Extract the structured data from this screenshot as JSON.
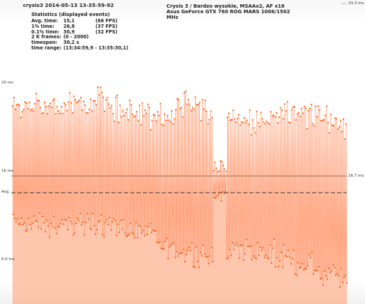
{
  "header": {
    "run_name": "crysis3 2014-05-13 13-35-59-92",
    "game": "Crysis 3 / Bardzo wysokie, MSAAx2, AF x16",
    "gpu": "Asus GeForce GTX 760 ROG MARS 1006/1502",
    "gpu_unit": "MHz"
  },
  "stats": {
    "title": "Statistics (displayed events)",
    "rows": [
      {
        "label": "Avg. time:",
        "value": "15,1",
        "extra": "(66 FPS)"
      },
      {
        "label": "1% time:",
        "value": "26,8",
        "extra": "(37 FPS)"
      },
      {
        "label": "0.1% time:",
        "value": "30,9",
        "extra": "(32 FPS)"
      },
      {
        "label": "2 K frames:",
        "value": "(0 - 2000)",
        "extra": ""
      },
      {
        "label": "timespan:",
        "value": "30,2 s",
        "extra": ""
      },
      {
        "label": "time range:",
        "value": "(13:34:59,9 - 13:35:30,1)",
        "extra": ""
      }
    ]
  },
  "axes": {
    "left_labels": [
      "20 ms",
      "16 ms",
      "Avg.",
      "0.0 ms"
    ],
    "top_right": "33.3 ms",
    "ref_right": "16.7 ms"
  },
  "chart_data": {
    "type": "line",
    "series_color": "#ff5a0a",
    "fill_color": "#ffb393",
    "avg_ms": 15.1,
    "ref_ms": 16.7,
    "pct1_ms": 26.8,
    "pct01_ms": 30.9,
    "frames": 2000,
    "x_range": [
      0,
      2000
    ],
    "y_range_ms": [
      0.0,
      33.3
    ]
  }
}
